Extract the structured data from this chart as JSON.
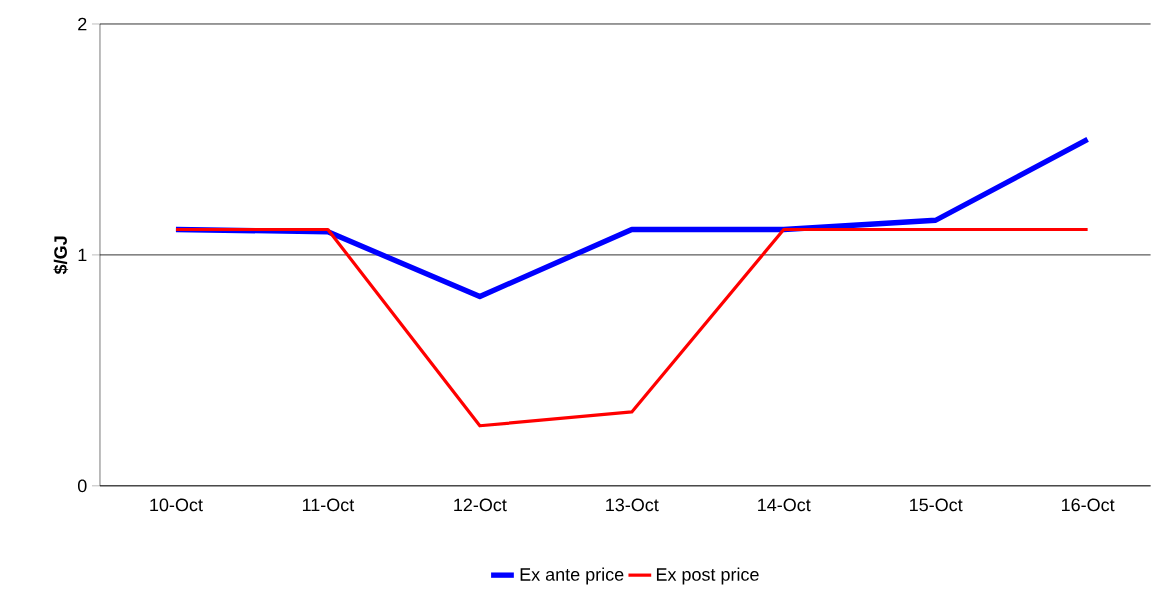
{
  "chart_data": {
    "type": "line",
    "ylabel": "$/GJ",
    "categories": [
      "10-Oct",
      "11-Oct",
      "12-Oct",
      "13-Oct",
      "14-Oct",
      "15-Oct",
      "16-Oct"
    ],
    "ylim": [
      0,
      2
    ],
    "yticks": [
      0,
      1,
      2
    ],
    "grid": "y",
    "legend": "bottom",
    "marker": "none",
    "line_style": "solid",
    "series": [
      {
        "name": "Ex ante price",
        "color": "#0000ff",
        "values": [
          1.11,
          1.1,
          0.82,
          1.11,
          1.11,
          1.15,
          1.5
        ]
      },
      {
        "name": "Ex post price",
        "color": "#ff0000",
        "values": [
          1.11,
          1.11,
          0.26,
          0.32,
          1.11,
          1.11,
          1.11
        ]
      }
    ]
  }
}
